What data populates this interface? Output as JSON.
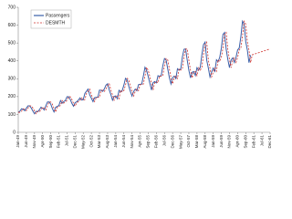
{
  "chart_data": {
    "type": "line",
    "categories": [
      "Jan-49",
      null,
      null,
      null,
      null,
      "Jun-49",
      null,
      null,
      null,
      null,
      "Nov-49",
      null,
      null,
      null,
      null,
      "Apr-50",
      null,
      null,
      null,
      null,
      "Sep-50",
      null,
      null,
      null,
      null,
      "Feb-51",
      null,
      null,
      null,
      null,
      "Jul-51",
      null,
      null,
      null,
      null,
      "Dec-51",
      null,
      null,
      null,
      null,
      "May-52",
      null,
      null,
      null,
      null,
      "Oct-52",
      null,
      null,
      null,
      null,
      "Mar-53",
      null,
      null,
      null,
      null,
      "Aug-53",
      null,
      null,
      null,
      null,
      "Jan-54",
      null,
      null,
      null,
      null,
      "Jun-54",
      null,
      null,
      null,
      null,
      "Nov-54",
      null,
      null,
      null,
      null,
      "Apr-55",
      null,
      null,
      null,
      null,
      "Sep-55",
      null,
      null,
      null,
      null,
      "Feb-56",
      null,
      null,
      null,
      null,
      "Jul-56",
      null,
      null,
      null,
      null,
      "Dec-56",
      null,
      null,
      null,
      null,
      "May-57",
      null,
      null,
      null,
      null,
      "Oct-57",
      null,
      null,
      null,
      null,
      "Mar-58",
      null,
      null,
      null,
      null,
      "Aug-58",
      null,
      null,
      null,
      null,
      "Jan-59",
      null,
      null,
      null,
      null,
      "Jun-59",
      null,
      null,
      null,
      null,
      "Nov-59",
      null,
      null,
      null,
      null,
      "Apr-60",
      null,
      null,
      null,
      null,
      "Sep-60",
      null,
      null,
      null,
      null,
      "Feb-61",
      null,
      null,
      null,
      null,
      "Jul-61",
      null,
      null,
      null,
      null,
      "Dec-61"
    ],
    "series": [
      {
        "name": "Passengers",
        "color": "#3a5fa8",
        "dash": false,
        "values": [
          112,
          118,
          132,
          129,
          121,
          135,
          148,
          148,
          136,
          119,
          104,
          118,
          115,
          126,
          141,
          135,
          125,
          149,
          170,
          170,
          158,
          133,
          114,
          140,
          145,
          150,
          178,
          163,
          172,
          178,
          199,
          199,
          184,
          162,
          146,
          166,
          171,
          180,
          193,
          181,
          183,
          218,
          230,
          242,
          209,
          191,
          172,
          194,
          196,
          196,
          236,
          235,
          229,
          243,
          264,
          272,
          237,
          211,
          180,
          201,
          204,
          188,
          235,
          227,
          234,
          264,
          302,
          293,
          259,
          229,
          203,
          229,
          242,
          233,
          267,
          269,
          270,
          315,
          364,
          347,
          312,
          274,
          237,
          278,
          284,
          277,
          317,
          313,
          318,
          374,
          413,
          405,
          355,
          306,
          271,
          306,
          315,
          301,
          356,
          348,
          355,
          422,
          465,
          467,
          404,
          347,
          305,
          336,
          340,
          318,
          362,
          348,
          363,
          435,
          491,
          505,
          404,
          359,
          310,
          337,
          360,
          342,
          406,
          396,
          420,
          472,
          548,
          559,
          463,
          407,
          362,
          405,
          417,
          391,
          419,
          461,
          472,
          535,
          622,
          606,
          508,
          461,
          390,
          432,
          null,
          null,
          null,
          null,
          null,
          null,
          null,
          null,
          null,
          null,
          null,
          null
        ]
      },
      {
        "name": "DESMTH",
        "color": "#d0312d",
        "dash": true,
        "values": [
          112,
          112,
          118,
          132,
          129,
          121,
          135,
          148,
          148,
          136,
          119,
          104,
          118,
          115,
          126,
          141,
          135,
          125,
          149,
          170,
          170,
          158,
          133,
          114,
          140,
          145,
          150,
          178,
          163,
          172,
          178,
          199,
          199,
          184,
          162,
          146,
          166,
          171,
          180,
          193,
          181,
          183,
          218,
          230,
          242,
          209,
          191,
          172,
          194,
          196,
          196,
          236,
          235,
          229,
          243,
          264,
          272,
          237,
          211,
          180,
          201,
          204,
          188,
          235,
          227,
          234,
          264,
          302,
          293,
          259,
          229,
          203,
          229,
          242,
          233,
          267,
          269,
          270,
          315,
          364,
          347,
          312,
          274,
          237,
          278,
          284,
          277,
          317,
          313,
          318,
          374,
          413,
          405,
          355,
          306,
          271,
          306,
          315,
          301,
          356,
          348,
          355,
          422,
          465,
          467,
          404,
          347,
          305,
          336,
          340,
          318,
          362,
          348,
          363,
          435,
          491,
          505,
          404,
          359,
          310,
          337,
          360,
          342,
          406,
          396,
          420,
          472,
          548,
          559,
          463,
          407,
          362,
          405,
          417,
          391,
          419,
          461,
          472,
          535,
          622,
          606,
          508,
          461,
          390,
          434,
          437,
          440,
          443,
          446,
          449,
          452,
          455,
          458,
          461,
          464,
          467
        ]
      }
    ],
    "ylim": [
      0,
      700
    ],
    "yticks": [
      0,
      100,
      200,
      300,
      400,
      500,
      600,
      700
    ],
    "grid": false,
    "legend": "top-left"
  }
}
